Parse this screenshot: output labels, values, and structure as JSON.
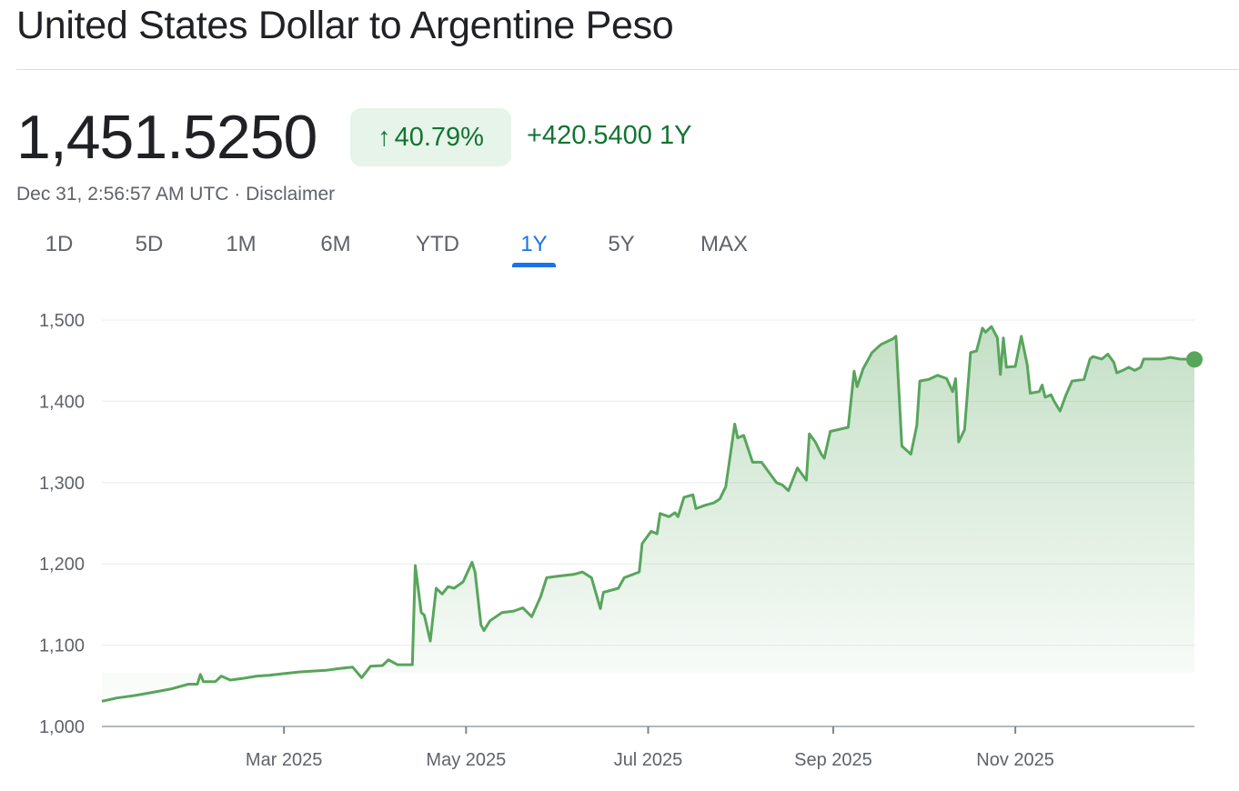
{
  "header": {
    "title": "United States Dollar to Argentine Peso",
    "price": "1,451.5250",
    "change_percent": "40.79%",
    "change_arrow_icon": "arrow-up-icon",
    "change_abs": "+420.5400 1Y",
    "timestamp": "Dec 31, 2:56:57 AM UTC",
    "separator": " · ",
    "disclaimer": "Disclaimer"
  },
  "tabs": [
    {
      "label": "1D",
      "active": false
    },
    {
      "label": "5D",
      "active": false
    },
    {
      "label": "1M",
      "active": false
    },
    {
      "label": "6M",
      "active": false
    },
    {
      "label": "YTD",
      "active": false
    },
    {
      "label": "1Y",
      "active": true
    },
    {
      "label": "5Y",
      "active": false
    },
    {
      "label": "MAX",
      "active": false
    }
  ],
  "colors": {
    "line": "#58a55c",
    "positive_text": "#137333",
    "badge_bg": "#e6f4ea",
    "active_tab": "#1a73e8"
  },
  "chart_data": {
    "type": "area",
    "ylim": [
      1000,
      1500
    ],
    "yticks": [
      1000,
      1100,
      1200,
      1300,
      1400,
      1500
    ],
    "ytick_labels": [
      "1,000",
      "1,100",
      "1,200",
      "1,300",
      "1,400",
      "1,500"
    ],
    "xticks": [
      "2025-03-01",
      "2025-05-01",
      "2025-07-01",
      "2025-09-01",
      "2025-11-01"
    ],
    "xtick_labels": [
      "Mar 2025",
      "May 2025",
      "Jul 2025",
      "Sep 2025",
      "Nov 2025"
    ],
    "grid": true,
    "points": [
      [
        "2024-12-30",
        1031
      ],
      [
        "2025-01-04",
        1035
      ],
      [
        "2025-01-10",
        1038
      ],
      [
        "2025-01-16",
        1042
      ],
      [
        "2025-01-22",
        1046
      ],
      [
        "2025-01-28",
        1052
      ],
      [
        "2025-01-31",
        1052
      ],
      [
        "2025-02-01",
        1064
      ],
      [
        "2025-02-02",
        1055
      ],
      [
        "2025-02-06",
        1055
      ],
      [
        "2025-02-08",
        1062
      ],
      [
        "2025-02-11",
        1057
      ],
      [
        "2025-02-15",
        1059
      ],
      [
        "2025-02-20",
        1062
      ],
      [
        "2025-02-24",
        1063
      ],
      [
        "2025-03-01",
        1065
      ],
      [
        "2025-03-06",
        1067
      ],
      [
        "2025-03-10",
        1068
      ],
      [
        "2025-03-15",
        1069
      ],
      [
        "2025-03-19",
        1071
      ],
      [
        "2025-03-24",
        1073
      ],
      [
        "2025-03-27",
        1060
      ],
      [
        "2025-03-30",
        1074
      ],
      [
        "2025-04-03",
        1075
      ],
      [
        "2025-04-05",
        1082
      ],
      [
        "2025-04-08",
        1076
      ],
      [
        "2025-04-13",
        1076
      ],
      [
        "2025-04-14",
        1198
      ],
      [
        "2025-04-16",
        1140
      ],
      [
        "2025-04-17",
        1137
      ],
      [
        "2025-04-19",
        1105
      ],
      [
        "2025-04-21",
        1170
      ],
      [
        "2025-04-23",
        1163
      ],
      [
        "2025-04-25",
        1172
      ],
      [
        "2025-04-27",
        1170
      ],
      [
        "2025-04-30",
        1178
      ],
      [
        "2025-05-03",
        1202
      ],
      [
        "2025-05-04",
        1190
      ],
      [
        "2025-05-06",
        1125
      ],
      [
        "2025-05-07",
        1118
      ],
      [
        "2025-05-09",
        1130
      ],
      [
        "2025-05-13",
        1140
      ],
      [
        "2025-05-17",
        1142
      ],
      [
        "2025-05-20",
        1146
      ],
      [
        "2025-05-23",
        1135
      ],
      [
        "2025-05-26",
        1160
      ],
      [
        "2025-05-28",
        1183
      ],
      [
        "2025-06-01",
        1185
      ],
      [
        "2025-06-06",
        1187
      ],
      [
        "2025-06-09",
        1190
      ],
      [
        "2025-06-12",
        1183
      ],
      [
        "2025-06-15",
        1145
      ],
      [
        "2025-06-16",
        1165
      ],
      [
        "2025-06-21",
        1170
      ],
      [
        "2025-06-23",
        1183
      ],
      [
        "2025-06-28",
        1190
      ],
      [
        "2025-06-29",
        1225
      ],
      [
        "2025-07-02",
        1240
      ],
      [
        "2025-07-04",
        1237
      ],
      [
        "2025-07-05",
        1262
      ],
      [
        "2025-07-08",
        1258
      ],
      [
        "2025-07-10",
        1263
      ],
      [
        "2025-07-11",
        1258
      ],
      [
        "2025-07-13",
        1282
      ],
      [
        "2025-07-16",
        1285
      ],
      [
        "2025-07-17",
        1268
      ],
      [
        "2025-07-20",
        1272
      ],
      [
        "2025-07-23",
        1275
      ],
      [
        "2025-07-25",
        1280
      ],
      [
        "2025-07-27",
        1295
      ],
      [
        "2025-07-30",
        1372
      ],
      [
        "2025-07-31",
        1355
      ],
      [
        "2025-08-02",
        1358
      ],
      [
        "2025-08-05",
        1325
      ],
      [
        "2025-08-08",
        1325
      ],
      [
        "2025-08-11",
        1310
      ],
      [
        "2025-08-13",
        1300
      ],
      [
        "2025-08-15",
        1297
      ],
      [
        "2025-08-17",
        1290
      ],
      [
        "2025-08-20",
        1318
      ],
      [
        "2025-08-23",
        1303
      ],
      [
        "2025-08-24",
        1360
      ],
      [
        "2025-08-26",
        1350
      ],
      [
        "2025-08-28",
        1335
      ],
      [
        "2025-08-29",
        1330
      ],
      [
        "2025-08-31",
        1363
      ],
      [
        "2025-09-06",
        1368
      ],
      [
        "2025-09-08",
        1437
      ],
      [
        "2025-09-09",
        1418
      ],
      [
        "2025-09-11",
        1440
      ],
      [
        "2025-09-14",
        1460
      ],
      [
        "2025-09-17",
        1470
      ],
      [
        "2025-09-21",
        1477
      ],
      [
        "2025-09-22",
        1480
      ],
      [
        "2025-09-24",
        1345
      ],
      [
        "2025-09-27",
        1335
      ],
      [
        "2025-09-29",
        1370
      ],
      [
        "2025-09-30",
        1425
      ],
      [
        "2025-10-03",
        1427
      ],
      [
        "2025-10-06",
        1432
      ],
      [
        "2025-10-09",
        1428
      ],
      [
        "2025-10-11",
        1412
      ],
      [
        "2025-10-12",
        1428
      ],
      [
        "2025-10-13",
        1350
      ],
      [
        "2025-10-15",
        1365
      ],
      [
        "2025-10-17",
        1460
      ],
      [
        "2025-10-19",
        1462
      ],
      [
        "2025-10-21",
        1490
      ],
      [
        "2025-10-22",
        1485
      ],
      [
        "2025-10-24",
        1492
      ],
      [
        "2025-10-26",
        1478
      ],
      [
        "2025-10-27",
        1433
      ],
      [
        "2025-10-28",
        1478
      ],
      [
        "2025-10-29",
        1442
      ],
      [
        "2025-11-01",
        1443
      ],
      [
        "2025-11-03",
        1480
      ],
      [
        "2025-11-05",
        1445
      ],
      [
        "2025-11-06",
        1410
      ],
      [
        "2025-11-09",
        1412
      ],
      [
        "2025-11-10",
        1420
      ],
      [
        "2025-11-11",
        1405
      ],
      [
        "2025-11-13",
        1408
      ],
      [
        "2025-11-14",
        1400
      ],
      [
        "2025-11-16",
        1388
      ],
      [
        "2025-11-18",
        1408
      ],
      [
        "2025-11-20",
        1425
      ],
      [
        "2025-11-24",
        1427
      ],
      [
        "2025-11-26",
        1452
      ],
      [
        "2025-11-27",
        1455
      ],
      [
        "2025-11-30",
        1452
      ],
      [
        "2025-12-02",
        1458
      ],
      [
        "2025-12-04",
        1448
      ],
      [
        "2025-12-05",
        1435
      ],
      [
        "2025-12-07",
        1438
      ],
      [
        "2025-12-09",
        1442
      ],
      [
        "2025-12-11",
        1438
      ],
      [
        "2025-12-13",
        1442
      ],
      [
        "2025-12-14",
        1452
      ],
      [
        "2025-12-20",
        1452
      ],
      [
        "2025-12-23",
        1454
      ],
      [
        "2025-12-26",
        1452
      ],
      [
        "2025-12-31",
        1451.525
      ]
    ]
  }
}
